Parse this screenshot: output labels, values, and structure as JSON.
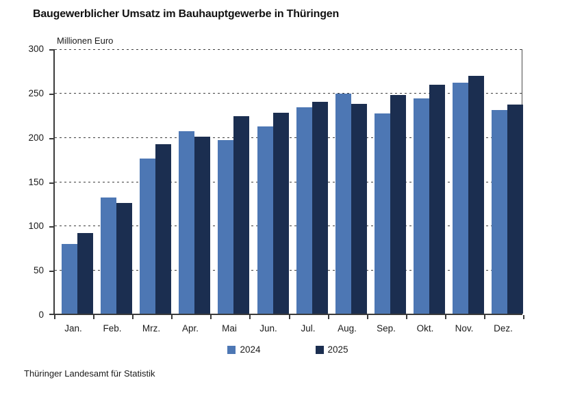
{
  "page": {
    "source": "Thüringer Landesamt für Statistik"
  },
  "chart_data": {
    "type": "bar",
    "title": "Baugewerblicher Umsatz im Bauhauptgewerbe in Thüringen",
    "unit_label": "Millionen Euro",
    "categories": [
      "Jan.",
      "Feb.",
      "Mrz.",
      "Apr.",
      "Mai",
      "Jun.",
      "Jul.",
      "Aug.",
      "Sep.",
      "Okt.",
      "Nov.",
      "Dez."
    ],
    "series": [
      {
        "name": "2024",
        "color": "#4d77b4",
        "values": [
          79,
          131,
          175,
          206,
          196,
          211,
          233,
          248,
          226,
          243,
          261,
          230
        ]
      },
      {
        "name": "2025",
        "color": "#1b2e50",
        "values": [
          91,
          125,
          191,
          200,
          223,
          227,
          239,
          237,
          247,
          258,
          268,
          236
        ]
      }
    ],
    "ylim": [
      0,
      300
    ],
    "ytick_step": 50,
    "xlabel": "",
    "ylabel": "Millionen Euro",
    "grid": "horizontal-dashed",
    "legend_position": "bottom"
  },
  "style": {
    "axis_color": "#3a3a3a",
    "grid_color": "#3d3d3d",
    "text_color": "#1a1a1a",
    "background": "#ffffff"
  }
}
